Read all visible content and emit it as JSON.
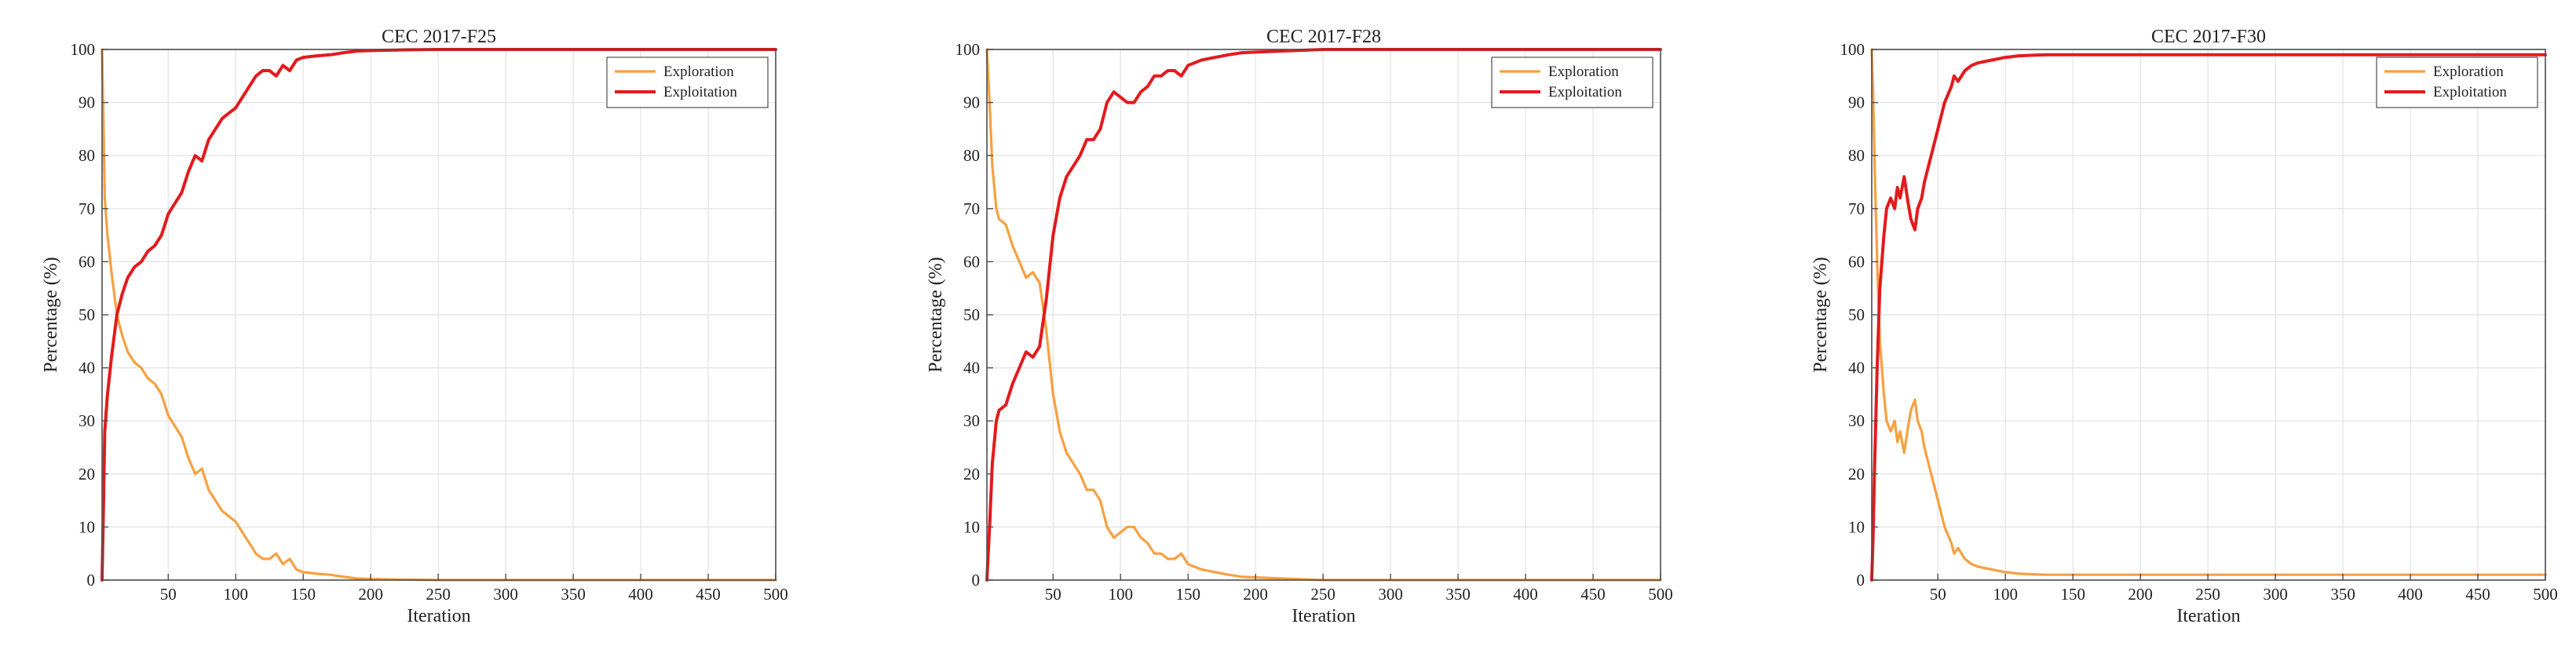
{
  "colors": {
    "exploration": "#f7a040",
    "exploitation": "#e31a1c"
  },
  "chart_data": [
    {
      "type": "line",
      "title": "CEC 2017-F25",
      "xlabel": "Iteration",
      "ylabel": "Percentage (%)",
      "xlim": [
        1,
        500
      ],
      "ylim": [
        0,
        100
      ],
      "xticks": [
        50,
        100,
        150,
        200,
        250,
        300,
        350,
        400,
        450,
        500
      ],
      "yticks": [
        0,
        10,
        20,
        30,
        40,
        50,
        60,
        70,
        80,
        90,
        100
      ],
      "grid": true,
      "legend": "top-right",
      "series": [
        {
          "name": "Exploration",
          "x": [
            1,
            2,
            3,
            5,
            8,
            12,
            16,
            20,
            25,
            30,
            35,
            40,
            45,
            50,
            55,
            60,
            65,
            70,
            75,
            80,
            85,
            90,
            95,
            100,
            105,
            110,
            115,
            120,
            125,
            130,
            135,
            140,
            145,
            150,
            160,
            170,
            180,
            190,
            200,
            220,
            250,
            300,
            350,
            400,
            450,
            500
          ],
          "values": [
            100,
            87,
            72,
            65,
            58,
            50,
            46,
            43,
            41,
            40,
            38,
            37,
            35,
            31,
            29,
            27,
            23,
            20,
            21,
            17,
            15,
            13,
            12,
            11,
            9,
            7,
            5,
            4,
            4,
            5,
            3,
            4,
            2,
            1.5,
            1.2,
            1,
            0.6,
            0.3,
            0.2,
            0.1,
            0,
            0,
            0,
            0,
            0,
            0
          ]
        },
        {
          "name": "Exploitation",
          "x": [
            1,
            2,
            3,
            5,
            8,
            12,
            16,
            20,
            25,
            30,
            35,
            40,
            45,
            50,
            55,
            60,
            65,
            70,
            75,
            80,
            85,
            90,
            95,
            100,
            105,
            110,
            115,
            120,
            125,
            130,
            135,
            140,
            145,
            150,
            160,
            170,
            180,
            190,
            200,
            220,
            250,
            300,
            350,
            400,
            450,
            500
          ],
          "values": [
            0,
            13,
            28,
            35,
            42,
            50,
            54,
            57,
            59,
            60,
            62,
            63,
            65,
            69,
            71,
            73,
            77,
            80,
            79,
            83,
            85,
            87,
            88,
            89,
            91,
            93,
            95,
            96,
            96,
            95,
            97,
            96,
            98,
            98.5,
            98.8,
            99,
            99.4,
            99.7,
            99.8,
            99.9,
            100,
            100,
            100,
            100,
            100,
            100
          ]
        }
      ]
    },
    {
      "type": "line",
      "title": "CEC 2017-F28",
      "xlabel": "Iteration",
      "ylabel": "Percentage (%)",
      "xlim": [
        1,
        500
      ],
      "ylim": [
        0,
        100
      ],
      "xticks": [
        50,
        100,
        150,
        200,
        250,
        300,
        350,
        400,
        450,
        500
      ],
      "yticks": [
        0,
        10,
        20,
        30,
        40,
        50,
        60,
        70,
        80,
        90,
        100
      ],
      "grid": true,
      "legend": "top-right",
      "series": [
        {
          "name": "Exploration",
          "x": [
            1,
            2,
            3,
            5,
            8,
            10,
            15,
            20,
            25,
            30,
            35,
            40,
            45,
            50,
            55,
            60,
            65,
            70,
            75,
            80,
            85,
            90,
            95,
            100,
            105,
            110,
            115,
            120,
            125,
            130,
            135,
            140,
            145,
            150,
            160,
            170,
            180,
            190,
            200,
            220,
            250,
            300,
            350,
            400,
            450,
            500
          ],
          "values": [
            100,
            95,
            90,
            78,
            70,
            68,
            67,
            63,
            60,
            57,
            58,
            56,
            47,
            35,
            28,
            24,
            22,
            20,
            17,
            17,
            15,
            10,
            8,
            9,
            10,
            10,
            8,
            7,
            5,
            5,
            4,
            4,
            5,
            3,
            2,
            1.5,
            1,
            0.6,
            0.5,
            0.3,
            0,
            0,
            0,
            0,
            0,
            0
          ]
        },
        {
          "name": "Exploitation",
          "x": [
            1,
            2,
            3,
            5,
            8,
            10,
            15,
            20,
            25,
            30,
            35,
            40,
            45,
            50,
            55,
            60,
            65,
            70,
            75,
            80,
            85,
            90,
            95,
            100,
            105,
            110,
            115,
            120,
            125,
            130,
            135,
            140,
            145,
            150,
            160,
            170,
            180,
            190,
            200,
            220,
            250,
            300,
            350,
            400,
            450,
            500
          ],
          "values": [
            0,
            5,
            10,
            22,
            30,
            32,
            33,
            37,
            40,
            43,
            42,
            44,
            53,
            65,
            72,
            76,
            78,
            80,
            83,
            83,
            85,
            90,
            92,
            91,
            90,
            90,
            92,
            93,
            95,
            95,
            96,
            96,
            95,
            97,
            98,
            98.5,
            99,
            99.4,
            99.5,
            99.7,
            100,
            100,
            100,
            100,
            100,
            100
          ]
        }
      ]
    },
    {
      "type": "line",
      "title": "CEC 2017-F30",
      "xlabel": "Iteration",
      "ylabel": "Percentage (%)",
      "xlim": [
        1,
        500
      ],
      "ylim": [
        0,
        100
      ],
      "xticks": [
        50,
        100,
        150,
        200,
        250,
        300,
        350,
        400,
        450,
        500
      ],
      "yticks": [
        0,
        10,
        20,
        30,
        40,
        50,
        60,
        70,
        80,
        90,
        100
      ],
      "grid": true,
      "legend": "top-right",
      "series": [
        {
          "name": "Exploration",
          "x": [
            1,
            2,
            3,
            5,
            7,
            10,
            12,
            15,
            18,
            20,
            22,
            25,
            28,
            30,
            33,
            35,
            38,
            40,
            45,
            50,
            55,
            60,
            62,
            65,
            70,
            75,
            80,
            90,
            100,
            110,
            120,
            130,
            150,
            170,
            200,
            250,
            300,
            350,
            400,
            450,
            500
          ],
          "values": [
            100,
            92,
            80,
            60,
            45,
            35,
            30,
            28,
            30,
            26,
            28,
            24,
            29,
            32,
            34,
            30,
            28,
            25,
            20,
            15,
            10,
            7,
            5,
            6,
            4,
            3,
            2.5,
            2,
            1.5,
            1.2,
            1.1,
            1,
            1,
            1,
            1,
            1,
            1,
            1,
            1,
            1,
            1
          ]
        },
        {
          "name": "Exploitation",
          "x": [
            1,
            2,
            3,
            5,
            7,
            10,
            12,
            15,
            18,
            20,
            22,
            25,
            28,
            30,
            33,
            35,
            38,
            40,
            45,
            50,
            55,
            60,
            62,
            65,
            70,
            75,
            80,
            90,
            100,
            110,
            120,
            130,
            150,
            170,
            200,
            250,
            300,
            350,
            400,
            450,
            500
          ],
          "values": [
            0,
            8,
            20,
            40,
            55,
            65,
            70,
            72,
            70,
            74,
            72,
            76,
            71,
            68,
            66,
            70,
            72,
            75,
            80,
            85,
            90,
            93,
            95,
            94,
            96,
            97,
            97.5,
            98,
            98.5,
            98.8,
            98.9,
            99,
            99,
            99,
            99,
            99,
            99,
            99,
            99,
            99,
            99
          ]
        }
      ]
    }
  ]
}
